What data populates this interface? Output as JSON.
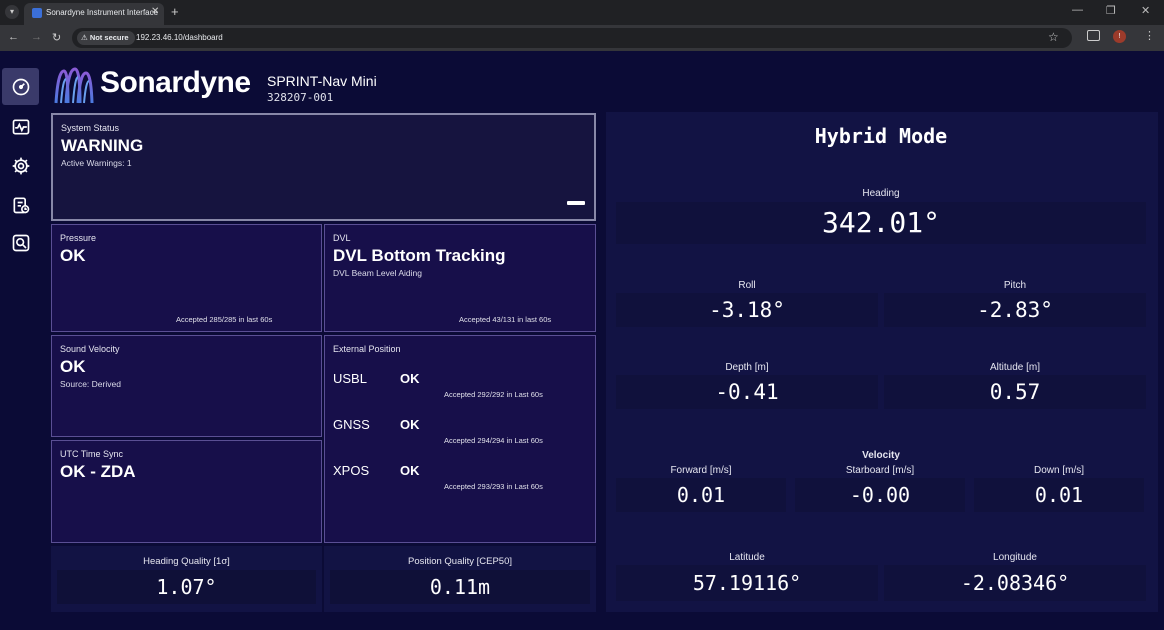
{
  "browser": {
    "tab_title": "Sonardyne Instrument Interface",
    "tab_close": "✕",
    "new_tab": "+",
    "not_secure": "Not secure",
    "url": "192.23.46.10/dashboard",
    "profile_initial": "!",
    "window_controls": [
      "—",
      "❐",
      "✕"
    ]
  },
  "sidenav": {
    "items": [
      {
        "icon": "dashboard-gauge-icon",
        "active": true
      },
      {
        "icon": "waveform-monitor-icon",
        "active": false
      },
      {
        "icon": "gear-icon",
        "active": false
      },
      {
        "icon": "clipboard-clock-icon",
        "active": false
      },
      {
        "icon": "search-wrench-icon",
        "active": false
      }
    ]
  },
  "header": {
    "brand": "Sonardyne",
    "product": "SPRINT-Nav Mini",
    "serial": "328207-001"
  },
  "system_status": {
    "label": "System Status",
    "value": "WARNING",
    "sub": "Active Warnings: 1"
  },
  "pressure": {
    "label": "Pressure",
    "value": "OK",
    "footer": "Accepted 285/285 in last 60s"
  },
  "dvl": {
    "label": "DVL",
    "value": "DVL Bottom Tracking",
    "sub": "DVL Beam Level Aiding",
    "footer": "Accepted 43/131 in last 60s"
  },
  "sound_velocity": {
    "label": "Sound Velocity",
    "value": "OK",
    "sub": "Source: Derived"
  },
  "utc_sync": {
    "label": "UTC Time Sync",
    "value": "OK - ZDA"
  },
  "external_position": {
    "label": "External Position",
    "rows": [
      {
        "name": "USBL",
        "status": "OK",
        "footer": "Accepted 292/292 in Last 60s"
      },
      {
        "name": "GNSS",
        "status": "OK",
        "footer": "Accepted 294/294 in Last 60s"
      },
      {
        "name": "XPOS",
        "status": "OK",
        "footer": "Accepted 293/293 in Last 60s"
      }
    ]
  },
  "heading_quality": {
    "label": "Heading Quality [1σ]",
    "value": "1.07°"
  },
  "position_quality": {
    "label": "Position Quality [CEP50]",
    "value": "0.11m"
  },
  "hybrid": {
    "title": "Hybrid Mode",
    "heading": {
      "label": "Heading",
      "value": "342.01°"
    },
    "roll": {
      "label": "Roll",
      "value": "-3.18°"
    },
    "pitch": {
      "label": "Pitch",
      "value": "-2.83°"
    },
    "depth": {
      "label": "Depth [m]",
      "value": "-0.41"
    },
    "altitude": {
      "label": "Altitude [m]",
      "value": "0.57"
    },
    "velocity_title": "Velocity",
    "forward": {
      "label": "Forward [m/s]",
      "value": "0.01"
    },
    "starboard": {
      "label": "Starboard [m/s]",
      "value": "-0.00"
    },
    "down": {
      "label": "Down [m/s]",
      "value": "0.01"
    },
    "latitude": {
      "label": "Latitude",
      "value": "57.19116°"
    },
    "longitude": {
      "label": "Longitude",
      "value": "-2.08346°"
    }
  },
  "colors": {
    "background": "#0b0b36",
    "card": "#170f4a",
    "card_border": "#5a4f94",
    "panel": "#121344"
  }
}
